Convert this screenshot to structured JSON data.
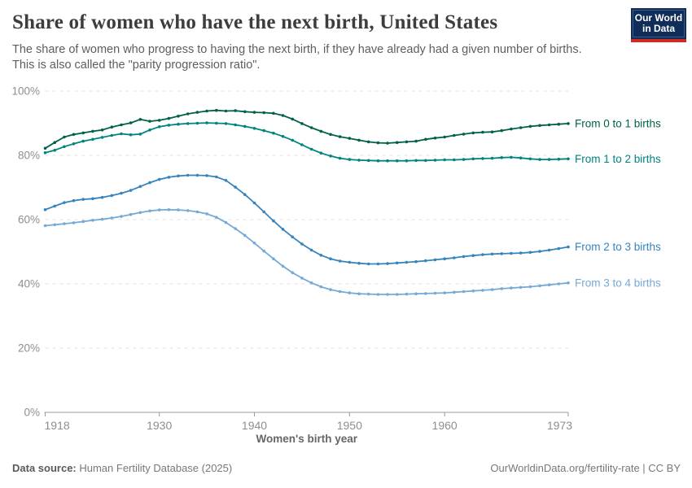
{
  "header": {
    "title": "Share of women who have the next birth, United States",
    "subtitle_lines": [
      "The share of women who progress to having the next birth, if they have already had a given number of births.",
      "This is also called the \"parity progression ratio\"."
    ],
    "logo": {
      "line1": "Our World",
      "line2": "in Data",
      "bg_color": "#102D59",
      "accent_color": "#CE2A1E"
    }
  },
  "chart_data": {
    "type": "line",
    "title": "Share of women who have the next birth, United States",
    "xlabel": "Women's birth year",
    "ylabel": "",
    "xlim": [
      1918,
      1973
    ],
    "ylim": [
      0,
      100
    ],
    "x_ticks": [
      1918,
      1930,
      1940,
      1950,
      1960,
      1973
    ],
    "y_ticks": [
      0,
      20,
      40,
      60,
      80,
      100
    ],
    "y_tick_suffix": "%",
    "grid": "horizontal-dashed",
    "legend_position": "right-of-line-ends",
    "x": [
      1918,
      1919,
      1920,
      1921,
      1922,
      1923,
      1924,
      1925,
      1926,
      1927,
      1928,
      1929,
      1930,
      1931,
      1932,
      1933,
      1934,
      1935,
      1936,
      1937,
      1938,
      1939,
      1940,
      1941,
      1942,
      1943,
      1944,
      1945,
      1946,
      1947,
      1948,
      1949,
      1950,
      1951,
      1952,
      1953,
      1954,
      1955,
      1956,
      1957,
      1958,
      1959,
      1960,
      1961,
      1962,
      1963,
      1964,
      1965,
      1966,
      1967,
      1968,
      1969,
      1970,
      1971,
      1972,
      1973
    ],
    "series": [
      {
        "name": "From 0 to 1 births",
        "color": "#00614B",
        "values": [
          82.2,
          84.0,
          85.7,
          86.5,
          87.0,
          87.5,
          87.9,
          88.8,
          89.5,
          90.1,
          91.2,
          90.6,
          90.9,
          91.5,
          92.2,
          92.9,
          93.4,
          93.8,
          94.0,
          93.8,
          93.9,
          93.6,
          93.4,
          93.3,
          93.1,
          92.4,
          91.3,
          89.9,
          88.6,
          87.5,
          86.5,
          85.8,
          85.3,
          84.7,
          84.2,
          83.9,
          83.8,
          84.0,
          84.2,
          84.4,
          85.0,
          85.4,
          85.7,
          86.2,
          86.6,
          87.0,
          87.2,
          87.3,
          87.7,
          88.2,
          88.6,
          89.0,
          89.3,
          89.5,
          89.7,
          89.9
        ]
      },
      {
        "name": "From 1 to 2 births",
        "color": "#00847E",
        "values": [
          80.8,
          81.6,
          82.7,
          83.6,
          84.4,
          85.0,
          85.6,
          86.2,
          86.7,
          86.4,
          86.6,
          87.9,
          88.9,
          89.4,
          89.7,
          89.9,
          90.0,
          90.1,
          90.0,
          89.9,
          89.5,
          89.0,
          88.4,
          87.7,
          86.9,
          85.9,
          84.7,
          83.3,
          81.9,
          80.7,
          79.8,
          79.1,
          78.7,
          78.5,
          78.4,
          78.3,
          78.3,
          78.3,
          78.3,
          78.4,
          78.4,
          78.5,
          78.6,
          78.6,
          78.7,
          78.9,
          79.0,
          79.1,
          79.3,
          79.4,
          79.2,
          78.9,
          78.7,
          78.7,
          78.8,
          78.9
        ]
      },
      {
        "name": "From 2 to 3 births",
        "color": "#3684BE",
        "values": [
          63.1,
          64.2,
          65.3,
          65.9,
          66.3,
          66.5,
          66.9,
          67.5,
          68.2,
          69.1,
          70.3,
          71.5,
          72.5,
          73.2,
          73.6,
          73.8,
          73.8,
          73.7,
          73.3,
          72.2,
          70.1,
          67.8,
          65.2,
          62.4,
          59.6,
          57.0,
          54.6,
          52.4,
          50.5,
          48.9,
          47.8,
          47.1,
          46.7,
          46.4,
          46.2,
          46.2,
          46.3,
          46.5,
          46.7,
          46.9,
          47.2,
          47.5,
          47.8,
          48.1,
          48.5,
          48.8,
          49.1,
          49.3,
          49.4,
          49.5,
          49.6,
          49.8,
          50.1,
          50.5,
          51.0,
          51.5
        ]
      },
      {
        "name": "From 3 to 4 births",
        "color": "#76AAD6",
        "values": [
          58.1,
          58.4,
          58.7,
          59.0,
          59.4,
          59.8,
          60.1,
          60.5,
          61.0,
          61.6,
          62.2,
          62.7,
          63.0,
          63.1,
          63.0,
          62.8,
          62.4,
          61.8,
          60.7,
          59.1,
          57.2,
          55.1,
          52.7,
          50.2,
          47.8,
          45.5,
          43.5,
          41.8,
          40.3,
          39.1,
          38.2,
          37.6,
          37.2,
          36.9,
          36.8,
          36.7,
          36.7,
          36.7,
          36.8,
          36.9,
          37.0,
          37.1,
          37.2,
          37.4,
          37.6,
          37.8,
          38.0,
          38.2,
          38.5,
          38.7,
          38.9,
          39.1,
          39.4,
          39.7,
          40.0,
          40.3
        ]
      }
    ]
  },
  "footer": {
    "source_label": "Data source:",
    "source_value": " Human Fertility Database (2025)",
    "credit": "OurWorldinData.org/fertility-rate | CC BY"
  }
}
